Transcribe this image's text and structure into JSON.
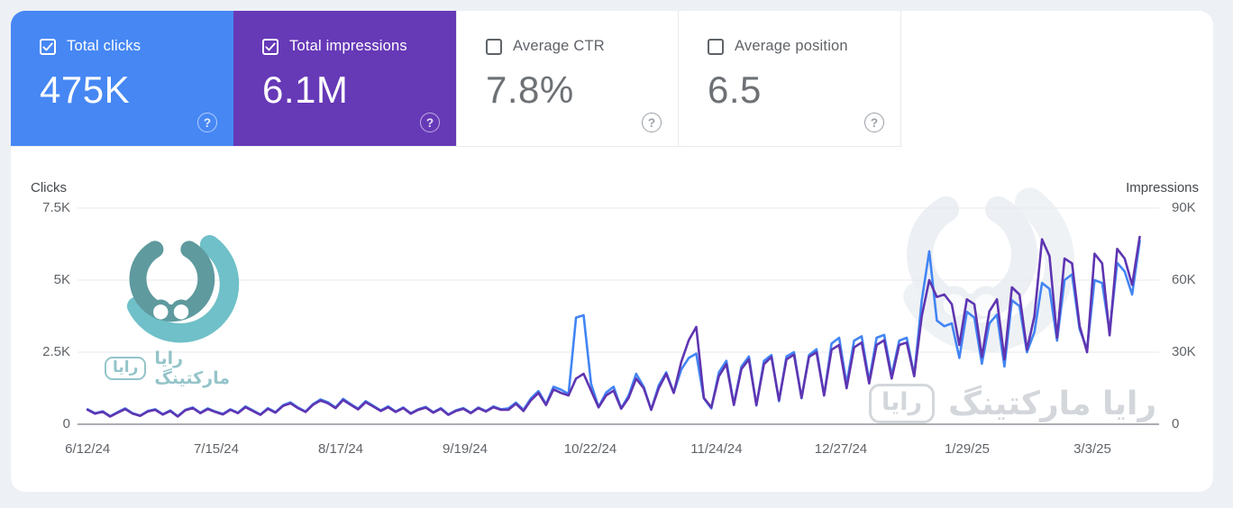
{
  "page": {
    "background": "#edf0f5",
    "panel_background": "#ffffff"
  },
  "icons": {
    "help_glyph": "?"
  },
  "watermark": {
    "brand_text": "رایا مارکتینگ",
    "badge_text": "رایا"
  },
  "header_cards": [
    {
      "label": "Total clicks",
      "value": "475K",
      "checked": true,
      "bg": "#4687f4",
      "value_color": "#ffffff",
      "label_color": "#ffffff"
    },
    {
      "label": "Total impressions",
      "value": "6.1M",
      "checked": true,
      "bg": "#6639b7",
      "value_color": "#ffffff",
      "label_color": "#ffffff"
    },
    {
      "label": "Average CTR",
      "value": "7.8%",
      "checked": false,
      "bg": "#ffffff",
      "value_color": "#6d7175",
      "label_color": "#5f6368"
    },
    {
      "label": "Average position",
      "value": "6.5",
      "checked": false,
      "bg": "#ffffff",
      "value_color": "#6d7175",
      "label_color": "#5f6368"
    }
  ],
  "chart_data": {
    "type": "line",
    "grid": true,
    "legend_position": "none",
    "grid_color": "#e8eaed",
    "baseline_color": "#8d9298",
    "left_axis": {
      "title": "Clicks",
      "max": 7.5,
      "ticks": [
        {
          "label": "7.5K",
          "value": 7.5
        },
        {
          "label": "5K",
          "value": 5
        },
        {
          "label": "2.5K",
          "value": 2.5
        },
        {
          "label": "0",
          "value": 0
        }
      ]
    },
    "right_axis": {
      "title": "Impressions",
      "max": 90,
      "ticks": [
        {
          "label": "90K",
          "value": 90
        },
        {
          "label": "60K",
          "value": 60
        },
        {
          "label": "30K",
          "value": 30
        },
        {
          "label": "0",
          "value": 0
        }
      ]
    },
    "x_ticks": [
      {
        "label": "6/12/24",
        "f": 0.006
      },
      {
        "label": "7/15/24",
        "f": 0.1254
      },
      {
        "label": "8/17/24",
        "f": 0.2408
      },
      {
        "label": "9/19/24",
        "f": 0.3562
      },
      {
        "label": "10/22/24",
        "f": 0.4724
      },
      {
        "label": "11/24/24",
        "f": 0.5894
      },
      {
        "label": "12/27/24",
        "f": 0.7048
      },
      {
        "label": "1/29/25",
        "f": 0.8219
      },
      {
        "label": "3/3/25",
        "f": 0.9381
      }
    ],
    "x_range": {
      "start_f": 0.006,
      "end_f": 0.982
    },
    "series": [
      {
        "name": "Clicks",
        "axis": "left",
        "color": "#4285f4",
        "unit": "K",
        "values": [
          0.52,
          0.38,
          0.45,
          0.28,
          0.42,
          0.55,
          0.38,
          0.3,
          0.46,
          0.52,
          0.35,
          0.48,
          0.28,
          0.5,
          0.58,
          0.4,
          0.55,
          0.44,
          0.36,
          0.52,
          0.4,
          0.62,
          0.48,
          0.34,
          0.56,
          0.42,
          0.66,
          0.76,
          0.58,
          0.44,
          0.7,
          0.86,
          0.76,
          0.58,
          0.88,
          0.7,
          0.54,
          0.8,
          0.64,
          0.48,
          0.62,
          0.44,
          0.58,
          0.38,
          0.52,
          0.6,
          0.42,
          0.56,
          0.34,
          0.48,
          0.56,
          0.4,
          0.58,
          0.46,
          0.62,
          0.52,
          0.55,
          0.75,
          0.5,
          0.9,
          1.15,
          0.7,
          1.3,
          1.2,
          1.05,
          3.7,
          3.78,
          1.4,
          0.6,
          1.1,
          1.3,
          0.55,
          1.0,
          1.75,
          1.3,
          0.5,
          1.35,
          1.8,
          1.1,
          1.9,
          2.3,
          2.45,
          0.9,
          0.55,
          1.8,
          2.2,
          0.7,
          2.0,
          2.35,
          0.65,
          2.2,
          2.4,
          0.8,
          2.35,
          2.5,
          0.9,
          2.4,
          2.6,
          1.0,
          2.8,
          3.0,
          1.4,
          2.9,
          3.05,
          1.5,
          3.0,
          3.1,
          1.7,
          2.9,
          3.0,
          1.7,
          4.3,
          6.0,
          3.6,
          3.4,
          3.5,
          2.3,
          3.9,
          3.7,
          2.1,
          3.5,
          3.8,
          2.0,
          4.3,
          4.1,
          2.5,
          3.2,
          4.9,
          4.7,
          2.9,
          5.0,
          5.2,
          3.3,
          2.6,
          5.0,
          4.9,
          3.2,
          5.6,
          5.3,
          4.5,
          6.35
        ]
      },
      {
        "name": "Impressions",
        "axis": "right",
        "color": "#5e35b1",
        "unit": "K",
        "values": [
          6.0,
          4.4,
          5.2,
          3.2,
          4.8,
          6.3,
          4.4,
          3.5,
          5.3,
          6.0,
          4.0,
          5.5,
          3.2,
          5.8,
          6.7,
          4.6,
          6.3,
          5.1,
          4.1,
          6.0,
          4.6,
          7.1,
          5.5,
          3.9,
          6.4,
          4.8,
          7.6,
          8.7,
          6.7,
          5.1,
          8.1,
          9.9,
          8.7,
          6.7,
          10.1,
          8.1,
          6.2,
          9.2,
          7.4,
          5.5,
          7.1,
          5.1,
          6.7,
          4.4,
          6.0,
          6.9,
          4.8,
          6.4,
          3.9,
          5.5,
          6.4,
          4.6,
          6.7,
          5.3,
          7.1,
          6.0,
          6.0,
          8.5,
          5.5,
          10,
          13,
          8,
          14.5,
          13,
          12,
          19,
          21,
          14,
          7,
          12,
          14,
          6.5,
          11,
          19,
          15,
          6,
          15,
          21,
          13,
          26,
          35,
          40.5,
          11,
          7,
          20,
          25,
          8,
          23,
          27,
          8,
          25,
          28,
          10,
          27,
          29,
          11,
          28,
          30,
          12,
          31,
          33,
          15,
          32,
          34,
          17,
          33,
          35,
          19,
          33,
          34,
          20,
          45,
          60,
          53,
          54,
          50,
          33,
          52,
          50,
          28,
          47,
          52,
          27,
          57,
          54,
          31,
          45,
          77,
          70,
          36,
          69,
          67,
          41,
          30,
          71,
          67,
          37,
          73,
          69,
          58,
          78
        ]
      }
    ]
  }
}
